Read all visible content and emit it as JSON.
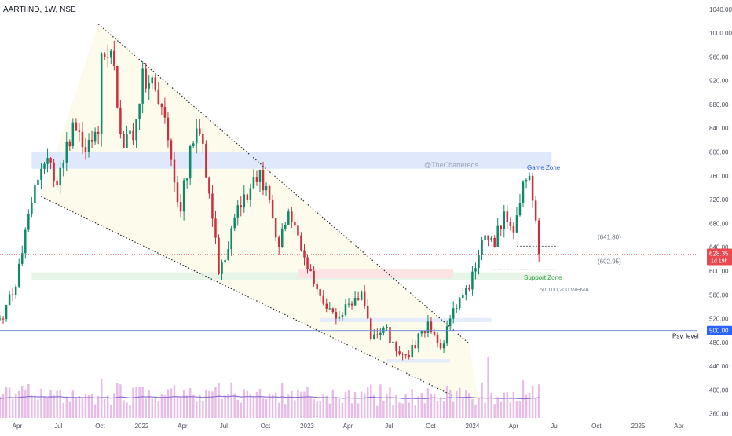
{
  "header": {
    "symbol": "AARTIIND",
    "interval": "1W",
    "exchange": "NSE"
  },
  "watermark": "@TheChartereds",
  "colors": {
    "up": "#0f8a68",
    "up_wick": "#0f8a68",
    "down": "#ce2d3d",
    "volume": "#e3b2e3",
    "wema": "#8f6fd0",
    "trendline": "#2b2b2b",
    "game_zone": "#dfe9fb",
    "support_zone": "#e6f5e6",
    "red_zone": "#fde3e3",
    "blue_zone": "#e5ecfb",
    "cone": "#fdfcea",
    "badge_red": "#e8484e",
    "badge_blue": "#2962ff"
  },
  "chart_data": {
    "type": "candlestick",
    "title": "AARTIIND, 1W, NSE",
    "price_axis": {
      "range": [
        353,
        1045
      ],
      "ticks": [
        1040,
        1000,
        960,
        920,
        880,
        840,
        800,
        760,
        720,
        680,
        640,
        600,
        560,
        520,
        480,
        440,
        400,
        360
      ],
      "tick_labels": [
        "1040.00",
        "1000.00",
        "960.00",
        "920.00",
        "880.00",
        "840.00",
        "800.00",
        "760.00",
        "720.00",
        "680.00",
        "640.00",
        "600.00",
        "560.00",
        "520.00",
        "480.00",
        "440.00",
        "400.00",
        "360.00"
      ]
    },
    "time_axis": {
      "start": "2021-02-22",
      "end": "2025-05-12",
      "ticks": [
        {
          "date": "2021-04-01",
          "label": "Apr"
        },
        {
          "date": "2021-07-01",
          "label": "Jul"
        },
        {
          "date": "2021-10-01",
          "label": "Oct"
        },
        {
          "date": "2022-01-01",
          "label": "2022"
        },
        {
          "date": "2022-04-01",
          "label": "Apr"
        },
        {
          "date": "2022-07-01",
          "label": "Jul"
        },
        {
          "date": "2022-10-01",
          "label": "Oct"
        },
        {
          "date": "2023-01-01",
          "label": "2023"
        },
        {
          "date": "2023-04-01",
          "label": "Apr"
        },
        {
          "date": "2023-07-01",
          "label": "Jul"
        },
        {
          "date": "2023-10-01",
          "label": "Oct"
        },
        {
          "date": "2024-01-01",
          "label": "2024"
        },
        {
          "date": "2024-04-01",
          "label": "Apr"
        },
        {
          "date": "2024-07-01",
          "label": "Jul"
        },
        {
          "date": "2024-10-01",
          "label": "Oct"
        },
        {
          "date": "2025-01-01",
          "label": "2025"
        },
        {
          "date": "2025-04-01",
          "label": "Apr"
        }
      ]
    },
    "anchors": [
      {
        "date": "2021-02-22",
        "close": 520
      },
      {
        "date": "2021-03-22",
        "close": 560
      },
      {
        "date": "2021-04-12",
        "close": 630
      },
      {
        "date": "2021-05-10",
        "close": 745
      },
      {
        "date": "2021-06-07",
        "close": 790
      },
      {
        "date": "2021-06-28",
        "close": 745
      },
      {
        "date": "2021-08-02",
        "close": 850
      },
      {
        "date": "2021-08-30",
        "close": 800
      },
      {
        "date": "2021-09-27",
        "close": 830
      },
      {
        "date": "2021-10-04",
        "close": 965
      },
      {
        "date": "2021-10-25",
        "close": 970
      },
      {
        "date": "2021-11-15",
        "close": 830
      },
      {
        "date": "2021-12-13",
        "close": 820
      },
      {
        "date": "2022-01-03",
        "close": 940
      },
      {
        "date": "2022-02-07",
        "close": 880
      },
      {
        "date": "2022-02-28",
        "close": 820
      },
      {
        "date": "2022-03-28",
        "close": 700
      },
      {
        "date": "2022-04-18",
        "close": 810
      },
      {
        "date": "2022-05-09",
        "close": 830
      },
      {
        "date": "2022-05-30",
        "close": 730
      },
      {
        "date": "2022-06-20",
        "close": 595
      },
      {
        "date": "2022-07-25",
        "close": 690
      },
      {
        "date": "2022-08-22",
        "close": 720
      },
      {
        "date": "2022-09-19",
        "close": 770
      },
      {
        "date": "2022-10-10",
        "close": 720
      },
      {
        "date": "2022-10-31",
        "close": 640
      },
      {
        "date": "2022-11-21",
        "close": 700
      },
      {
        "date": "2022-12-12",
        "close": 660
      },
      {
        "date": "2023-01-09",
        "close": 600
      },
      {
        "date": "2023-02-06",
        "close": 545
      },
      {
        "date": "2023-03-06",
        "close": 520
      },
      {
        "date": "2023-04-03",
        "close": 545
      },
      {
        "date": "2023-05-01",
        "close": 565
      },
      {
        "date": "2023-05-22",
        "close": 485
      },
      {
        "date": "2023-06-19",
        "close": 505
      },
      {
        "date": "2023-07-17",
        "close": 465
      },
      {
        "date": "2023-08-14",
        "close": 455
      },
      {
        "date": "2023-09-04",
        "close": 495
      },
      {
        "date": "2023-09-25",
        "close": 515
      },
      {
        "date": "2023-10-23",
        "close": 470
      },
      {
        "date": "2023-11-13",
        "close": 520
      },
      {
        "date": "2023-12-11",
        "close": 560
      },
      {
        "date": "2024-01-08",
        "close": 605
      },
      {
        "date": "2024-01-29",
        "close": 660
      },
      {
        "date": "2024-02-19",
        "close": 640
      },
      {
        "date": "2024-03-11",
        "close": 700
      },
      {
        "date": "2024-04-01",
        "close": 665
      },
      {
        "date": "2024-04-22",
        "close": 750
      },
      {
        "date": "2024-05-06",
        "close": 760
      },
      {
        "date": "2024-05-20",
        "close": 685
      },
      {
        "date": "2024-05-27",
        "close": 628.35
      }
    ],
    "volume_wema_label": "50,100,200 WEMA",
    "drawings": {
      "trendline_upper": [
        {
          "date": "2021-09-27",
          "price": 1015
        },
        {
          "date": "2023-12-25",
          "price": 478
        }
      ],
      "trendline_lower": [
        {
          "date": "2021-05-24",
          "price": 725
        },
        {
          "date": "2023-11-20",
          "price": 390
        }
      ],
      "game_zone": {
        "from": "2021-05-03",
        "to": "2024-06-24",
        "low": 772,
        "high": 800,
        "label": "Game Zone"
      },
      "support_zone": {
        "from": "2021-05-03",
        "to": "2024-06-24",
        "low": 585,
        "high": 598,
        "label": "Support Zone"
      },
      "red_zone": {
        "from": "2022-12-12",
        "to": "2023-11-20",
        "low": 588,
        "high": 603
      },
      "blue_zone_1": {
        "from": "2023-01-30",
        "to": "2024-02-12",
        "low": 514,
        "high": 521
      },
      "blue_zone_2": {
        "from": "2023-06-26",
        "to": "2023-11-13",
        "low": 446,
        "high": 452
      },
      "level_641": {
        "from": "2024-04-08",
        "to": "2024-07-08",
        "price": 641.8,
        "label": "(641.80)"
      },
      "level_602": {
        "from": "2024-02-12",
        "to": "2024-07-08",
        "price": 602.95,
        "label": "(602.95)"
      },
      "psy_level": {
        "price": 500,
        "label": "Psy. level"
      },
      "last_price": {
        "price": 628.35,
        "label": "628.35",
        "countdown": "1d 19h"
      },
      "psy_badge": {
        "price": 500,
        "label": "500.00"
      }
    }
  }
}
